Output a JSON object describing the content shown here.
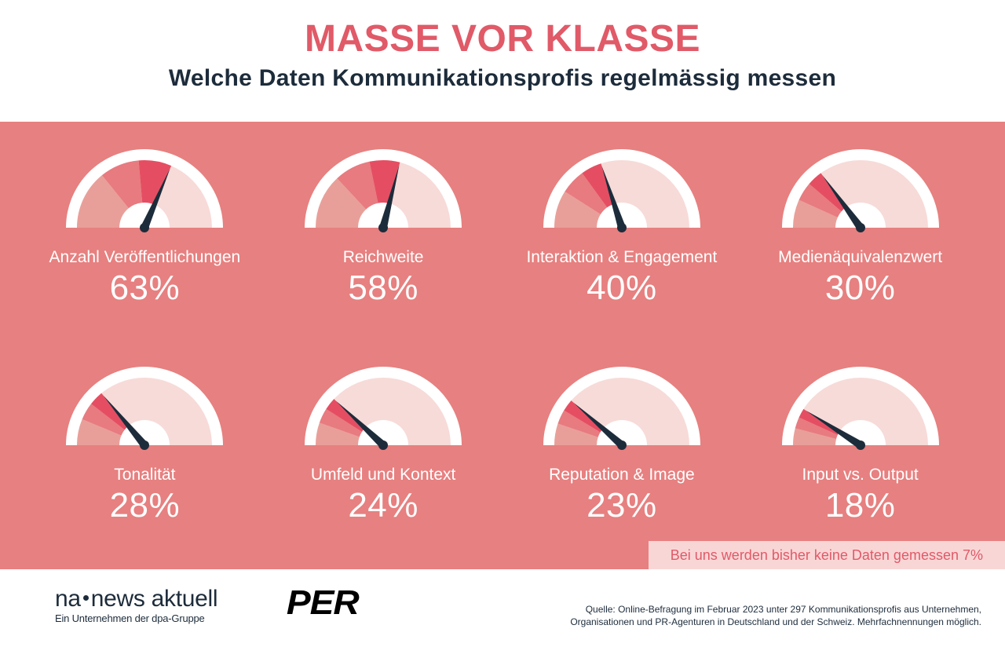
{
  "layout": {
    "canvas_bg": "#ffffff",
    "panel_bg": "#e78080",
    "note_bar_bg": "#f9d6d6",
    "note_bar_color": "#e05a68",
    "logo_color": "#1d2c3b",
    "per_logo_color": "#000000",
    "source_color": "#1d2c3b"
  },
  "headline": {
    "text": "MASSE VOR KLASSE",
    "color": "#e05a68",
    "fontsize": 48
  },
  "subheadline": {
    "text": "Welche Daten Kommunikationsprofis regelmässig messen",
    "color": "#1d2c3b",
    "fontsize": 30
  },
  "gauge_style": {
    "outer_fill": "#ffffff",
    "track_fill": "#f7dbd8",
    "wedge_light": "#e99f99",
    "wedge_mid": "#e77b80",
    "wedge_dark": "#e54e62",
    "needle_color": "#1d2c3b",
    "label_color": "#ffffff",
    "value_color": "#ffffff",
    "label_fontsize": 21,
    "value_fontsize": 44
  },
  "metrics": [
    {
      "label": "Anzahl Veröffentlichungen",
      "percent": 63
    },
    {
      "label": "Reichweite",
      "percent": 58
    },
    {
      "label": "Interaktion & Engagement",
      "percent": 40
    },
    {
      "label": "Medienäquivalenzwert",
      "percent": 30
    },
    {
      "label": "Tonalität",
      "percent": 28
    },
    {
      "label": "Umfeld und Kontext",
      "percent": 24
    },
    {
      "label": "Reputation & Image",
      "percent": 23
    },
    {
      "label": "Input vs. Output",
      "percent": 18
    }
  ],
  "note_bar": {
    "text": "Bei uns werden bisher keine Daten gemessen 7%"
  },
  "logos": {
    "na_prefix": "na",
    "na_main": "news aktuell",
    "na_sub": "Ein Unternehmen der dpa-Gruppe",
    "per": "PER"
  },
  "source": {
    "text": "Quelle: Online-Befragung im Februar 2023 unter 297 Kommunikationsprofis aus Unternehmen, Organisationen und PR-Agenturen in Deutschland und der Schweiz. Mehrfachnennungen möglich.",
    "fontsize": 12
  }
}
